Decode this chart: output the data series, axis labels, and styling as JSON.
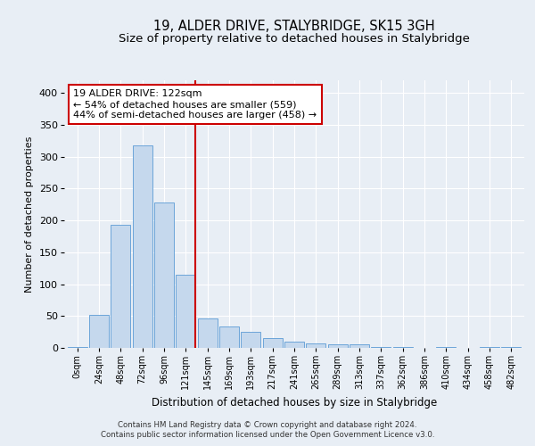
{
  "title": "19, ALDER DRIVE, STALYBRIDGE, SK15 3GH",
  "subtitle": "Size of property relative to detached houses in Stalybridge",
  "xlabel": "Distribution of detached houses by size in Stalybridge",
  "ylabel": "Number of detached properties",
  "annotation_lines": [
    "19 ALDER DRIVE: 122sqm",
    "← 54% of detached houses are smaller (559)",
    "44% of semi-detached houses are larger (458) →"
  ],
  "bar_color": "#c5d8ed",
  "bar_edge_color": "#5b9bd5",
  "vline_color": "#cc0000",
  "categories": [
    "0sqm",
    "24sqm",
    "48sqm",
    "72sqm",
    "96sqm",
    "121sqm",
    "145sqm",
    "169sqm",
    "193sqm",
    "217sqm",
    "241sqm",
    "265sqm",
    "289sqm",
    "313sqm",
    "337sqm",
    "362sqm",
    "386sqm",
    "410sqm",
    "434sqm",
    "458sqm",
    "482sqm"
  ],
  "values": [
    2,
    52,
    193,
    318,
    228,
    115,
    46,
    33,
    25,
    16,
    10,
    7,
    5,
    5,
    2,
    2,
    0,
    2,
    0,
    1,
    2
  ],
  "ylim": [
    0,
    420
  ],
  "yticks": [
    0,
    50,
    100,
    150,
    200,
    250,
    300,
    350,
    400
  ],
  "footer1": "Contains HM Land Registry data © Crown copyright and database right 2024.",
  "footer2": "Contains public sector information licensed under the Open Government Licence v3.0.",
  "background_color": "#e8eef5",
  "plot_bg_color": "#e8eef5",
  "title_fontsize": 10.5,
  "subtitle_fontsize": 9.5
}
